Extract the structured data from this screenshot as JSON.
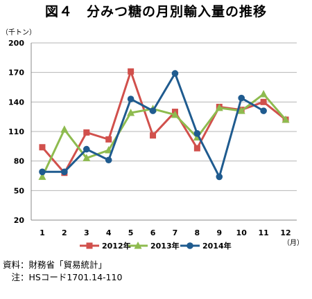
{
  "title": "図４　分みつ糖の月別輸入量の推移",
  "chart_data": {
    "type": "line",
    "ylabel": "（千トン）",
    "xlabel": "（月）",
    "ylim": [
      20,
      200
    ],
    "yticks": [
      20,
      50,
      80,
      110,
      140,
      170,
      200
    ],
    "grid": true,
    "legend_position": "bottom",
    "categories": [
      "1",
      "2",
      "3",
      "4",
      "5",
      "6",
      "7",
      "8",
      "9",
      "10",
      "11",
      "12"
    ],
    "series": [
      {
        "name": "2012年",
        "color": "#d1504c",
        "marker": "square",
        "values": [
          94,
          68,
          109,
          102,
          171,
          106,
          130,
          93,
          135,
          132,
          140,
          122
        ]
      },
      {
        "name": "2013年",
        "color": "#8ebb4f",
        "marker": "triangle",
        "values": [
          64,
          112,
          83,
          91,
          129,
          133,
          127,
          104,
          134,
          131,
          148,
          122
        ]
      },
      {
        "name": "2014年",
        "color": "#1f5b8f",
        "marker": "circle",
        "values": [
          69,
          69,
          92,
          81,
          143,
          131,
          169,
          108,
          64,
          144,
          131,
          null
        ]
      }
    ]
  },
  "source": {
    "line1": "資料：財務省「貿易統計」",
    "line2": "　注：HSコード1701.14-110"
  }
}
